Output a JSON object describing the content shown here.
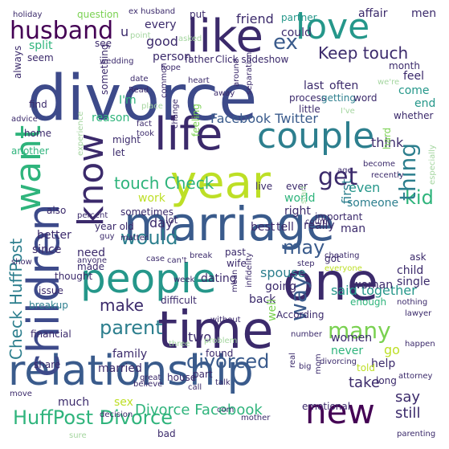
{
  "palette": {
    "navy": "#3b2a6b",
    "indigo": "#3d4a8a",
    "blue": "#3a5b8c",
    "teal": "#2d7f8e",
    "sea": "#25978a",
    "green": "#2fb47c",
    "lime": "#7ad151",
    "yellow": "#bddf26",
    "purple": "#440154",
    "pale": "#a5d6a0"
  },
  "words": [
    {
      "text": "divorce",
      "color": "indigo"
    },
    {
      "text": "marriage",
      "color": "blue"
    },
    {
      "text": "relationship",
      "color": "blue"
    },
    {
      "text": "one",
      "color": "navy"
    },
    {
      "text": "time",
      "color": "navy"
    },
    {
      "text": "people",
      "color": "sea"
    },
    {
      "text": "children",
      "color": "indigo"
    },
    {
      "text": "year",
      "color": "yellow"
    },
    {
      "text": "couple",
      "color": "teal"
    },
    {
      "text": "life",
      "color": "navy"
    },
    {
      "text": "like",
      "color": "navy"
    },
    {
      "text": "love",
      "color": "sea"
    },
    {
      "text": "want",
      "color": "green"
    },
    {
      "text": "know",
      "color": "navy"
    },
    {
      "text": "husband",
      "color": "purple"
    },
    {
      "text": "new",
      "color": "purple"
    },
    {
      "text": "HuffPost Divorce",
      "color": "green"
    },
    {
      "text": "divorced",
      "color": "blue"
    },
    {
      "text": "ex",
      "color": "blue"
    },
    {
      "text": "Keep touch",
      "color": "navy"
    },
    {
      "text": "touch Check",
      "color": "green"
    },
    {
      "text": "Facebook Twitter",
      "color": "blue"
    },
    {
      "text": "would",
      "color": "teal"
    },
    {
      "text": "get",
      "color": "navy"
    },
    {
      "text": "kid",
      "color": "green"
    },
    {
      "text": "parent",
      "color": "teal"
    },
    {
      "text": "make",
      "color": "navy"
    },
    {
      "text": "way",
      "color": "blue"
    },
    {
      "text": "many",
      "color": "lime"
    },
    {
      "text": "may",
      "color": "blue"
    },
    {
      "text": "thing",
      "color": "teal"
    },
    {
      "text": "Check HuffPost",
      "color": "teal"
    },
    {
      "text": "Divorce Facebook",
      "color": "green"
    },
    {
      "text": "say",
      "color": "navy"
    },
    {
      "text": "still",
      "color": "navy"
    },
    {
      "text": "take",
      "color": "navy"
    },
    {
      "text": "said together",
      "color": "sea"
    },
    {
      "text": "family",
      "color": "navy"
    },
    {
      "text": "married",
      "color": "navy"
    },
    {
      "text": "much",
      "color": "navy"
    },
    {
      "text": "dating",
      "color": "navy"
    },
    {
      "text": "back",
      "color": "navy"
    },
    {
      "text": "well",
      "color": "lime"
    },
    {
      "text": "two",
      "color": "navy"
    },
    {
      "text": "spouse",
      "color": "teal"
    },
    {
      "text": "going",
      "color": "navy"
    },
    {
      "text": "child",
      "color": "navy"
    },
    {
      "text": "woman",
      "color": "navy"
    },
    {
      "text": "single",
      "color": "navy"
    },
    {
      "text": "even",
      "color": "sea"
    },
    {
      "text": "first",
      "color": "teal"
    },
    {
      "text": "think",
      "color": "navy"
    },
    {
      "text": "someone",
      "color": "teal"
    },
    {
      "text": "really",
      "color": "navy"
    },
    {
      "text": "best",
      "color": "navy"
    },
    {
      "text": "tell",
      "color": "navy"
    },
    {
      "text": "man",
      "color": "navy"
    },
    {
      "text": "emotional",
      "color": "navy"
    },
    {
      "text": "long",
      "color": "navy"
    },
    {
      "text": "sex",
      "color": "yellow"
    },
    {
      "text": "help",
      "color": "navy"
    },
    {
      "text": "never",
      "color": "green"
    },
    {
      "text": "women",
      "color": "navy"
    },
    {
      "text": "go",
      "color": "yellow"
    },
    {
      "text": "friend",
      "color": "navy"
    },
    {
      "text": "partner",
      "color": "sea"
    },
    {
      "text": "could",
      "color": "navy"
    },
    {
      "text": "good",
      "color": "navy"
    },
    {
      "text": "every",
      "color": "navy"
    },
    {
      "text": "split",
      "color": "green"
    },
    {
      "text": "person",
      "color": "navy"
    },
    {
      "text": "father",
      "color": "navy"
    },
    {
      "text": "Click slideshow",
      "color": "navy"
    },
    {
      "text": "feel",
      "color": "navy"
    },
    {
      "text": "come",
      "color": "sea"
    },
    {
      "text": "end",
      "color": "sea"
    },
    {
      "text": "I'm",
      "color": "green"
    },
    {
      "text": "feeling",
      "color": "lime"
    },
    {
      "text": "work",
      "color": "yellow"
    },
    {
      "text": "sometimes",
      "color": "navy"
    },
    {
      "text": "day",
      "color": "navy"
    },
    {
      "text": "lot",
      "color": "navy"
    },
    {
      "text": "live",
      "color": "navy"
    },
    {
      "text": "ever",
      "color": "navy"
    },
    {
      "text": "world",
      "color": "green"
    },
    {
      "text": "right",
      "color": "navy"
    },
    {
      "text": "last",
      "color": "navy"
    },
    {
      "text": "often",
      "color": "navy"
    },
    {
      "text": "process",
      "color": "navy"
    },
    {
      "text": "getting",
      "color": "teal"
    },
    {
      "text": "word",
      "color": "navy"
    },
    {
      "text": "little",
      "color": "navy"
    },
    {
      "text": "since",
      "color": "navy"
    },
    {
      "text": "also",
      "color": "navy"
    },
    {
      "text": "better",
      "color": "navy"
    },
    {
      "text": "need",
      "color": "navy"
    },
    {
      "text": "made",
      "color": "navy"
    },
    {
      "text": "year old",
      "color": "navy"
    },
    {
      "text": "thought",
      "color": "navy"
    },
    {
      "text": "According",
      "color": "navy"
    },
    {
      "text": "got",
      "color": "navy"
    },
    {
      "text": "important",
      "color": "navy"
    },
    {
      "text": "hard",
      "color": "lime"
    },
    {
      "text": "find",
      "color": "navy"
    },
    {
      "text": "reason",
      "color": "green"
    },
    {
      "text": "might",
      "color": "navy"
    },
    {
      "text": "let",
      "color": "navy"
    },
    {
      "text": "something",
      "color": "navy"
    },
    {
      "text": "seem",
      "color": "navy"
    },
    {
      "text": "always",
      "color": "navy"
    },
    {
      "text": "home",
      "color": "navy"
    },
    {
      "text": "another",
      "color": "green"
    },
    {
      "text": "holiday",
      "color": "navy"
    },
    {
      "text": "question",
      "color": "lime"
    },
    {
      "text": "ex husband",
      "color": "navy"
    },
    {
      "text": "put",
      "color": "navy"
    },
    {
      "text": "affair",
      "color": "navy"
    },
    {
      "text": "men",
      "color": "navy"
    },
    {
      "text": "month",
      "color": "navy"
    },
    {
      "text": "financial",
      "color": "navy"
    },
    {
      "text": "breakup",
      "color": "teal"
    },
    {
      "text": "issue",
      "color": "navy"
    },
    {
      "text": "show",
      "color": "navy"
    },
    {
      "text": "share",
      "color": "navy"
    },
    {
      "text": "move",
      "color": "navy"
    },
    {
      "text": "decision",
      "color": "navy"
    },
    {
      "text": "bad",
      "color": "navy"
    },
    {
      "text": "attorney",
      "color": "navy"
    },
    {
      "text": "parenting",
      "color": "navy"
    },
    {
      "text": "happen",
      "color": "navy"
    },
    {
      "text": "enough",
      "color": "green"
    },
    {
      "text": "nothing",
      "color": "navy"
    },
    {
      "text": "lawyer",
      "color": "navy"
    },
    {
      "text": "ask",
      "color": "navy"
    },
    {
      "text": "told",
      "color": "yellow"
    },
    {
      "text": "divorcing",
      "color": "navy"
    },
    {
      "text": "number",
      "color": "navy"
    },
    {
      "text": "found",
      "color": "navy"
    },
    {
      "text": "house",
      "color": "navy"
    },
    {
      "text": "part",
      "color": "navy"
    },
    {
      "text": "believe",
      "color": "navy"
    },
    {
      "text": "difficult",
      "color": "navy"
    },
    {
      "text": "wife",
      "color": "navy"
    },
    {
      "text": "past",
      "color": "navy"
    },
    {
      "text": "case",
      "color": "navy"
    },
    {
      "text": "can't",
      "color": "navy"
    },
    {
      "text": "infidelity",
      "color": "navy"
    },
    {
      "text": "cheating",
      "color": "navy"
    },
    {
      "text": "everyone",
      "color": "yellow"
    },
    {
      "text": "recently",
      "color": "navy"
    },
    {
      "text": "become",
      "color": "navy"
    },
    {
      "text": "whether",
      "color": "navy"
    },
    {
      "text": "especially",
      "color": "pale"
    },
    {
      "text": "age",
      "color": "navy"
    },
    {
      "text": "court",
      "color": "navy"
    },
    {
      "text": "step",
      "color": "navy"
    },
    {
      "text": "start",
      "color": "pale"
    },
    {
      "text": "anyone",
      "color": "navy"
    },
    {
      "text": "matter",
      "color": "navy"
    },
    {
      "text": "percent",
      "color": "navy"
    },
    {
      "text": "guy",
      "color": "navy"
    },
    {
      "text": "advice",
      "color": "navy"
    },
    {
      "text": "fact",
      "color": "navy"
    },
    {
      "text": "took",
      "color": "navy"
    },
    {
      "text": "change",
      "color": "navy"
    },
    {
      "text": "place",
      "color": "pale"
    },
    {
      "text": "date",
      "color": "navy"
    },
    {
      "text": "Read",
      "color": "navy"
    },
    {
      "text": "common",
      "color": "navy"
    },
    {
      "text": "heart",
      "color": "navy"
    },
    {
      "text": "away",
      "color": "navy"
    },
    {
      "text": "separation",
      "color": "navy"
    },
    {
      "text": "around",
      "color": "navy"
    },
    {
      "text": "we're",
      "color": "pale"
    },
    {
      "text": "I've",
      "color": "pale"
    },
    {
      "text": "wedding",
      "color": "navy"
    },
    {
      "text": "hope",
      "color": "navy"
    },
    {
      "text": "asked",
      "color": "pale"
    },
    {
      "text": "point",
      "color": "pale"
    },
    {
      "text": "u",
      "color": "navy"
    },
    {
      "text": "see",
      "color": "navy"
    },
    {
      "text": "experience",
      "color": "pale"
    },
    {
      "text": "break",
      "color": "navy"
    },
    {
      "text": "week",
      "color": "navy"
    },
    {
      "text": "mean",
      "color": "navy"
    },
    {
      "text": "without",
      "color": "navy"
    },
    {
      "text": "problem",
      "color": "pale"
    },
    {
      "text": "talk",
      "color": "navy"
    },
    {
      "text": "call",
      "color": "navy"
    },
    {
      "text": "great",
      "color": "navy"
    },
    {
      "text": "three",
      "color": "pale"
    },
    {
      "text": "real",
      "color": "navy"
    },
    {
      "text": "com",
      "color": "navy"
    },
    {
      "text": "mom",
      "color": "navy"
    },
    {
      "text": "big",
      "color": "navy"
    },
    {
      "text": "mother",
      "color": "navy"
    },
    {
      "text": "sure",
      "color": "pale"
    }
  ]
}
